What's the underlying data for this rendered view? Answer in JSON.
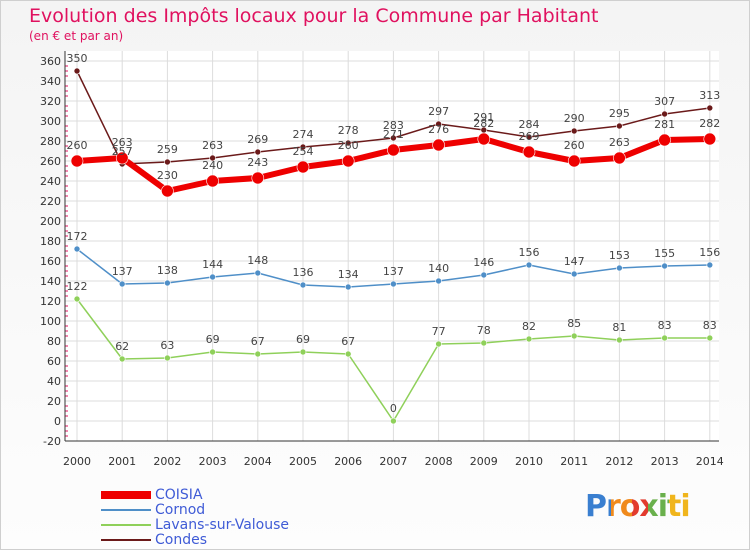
{
  "title": "Evolution des Impôts locaux pour la Commune par Habitant",
  "subtitle": "(en € et par an)",
  "logo": "Proxiti",
  "chart_data": {
    "type": "line",
    "title": "Evolution des Impôts locaux pour la Commune par Habitant",
    "subtitle": "(en € et par an)",
    "xlabel": "",
    "ylabel": "",
    "ylim": [
      -20,
      360
    ],
    "yticks": [
      -20,
      0,
      20,
      40,
      60,
      80,
      100,
      120,
      140,
      160,
      180,
      200,
      220,
      240,
      260,
      280,
      300,
      320,
      340,
      360
    ],
    "grid": true,
    "legend_position": "bottom-left",
    "categories": [
      "2000",
      "2001",
      "2002",
      "2003",
      "2004",
      "2005",
      "2006",
      "2007",
      "2008",
      "2009",
      "2010",
      "2011",
      "2012",
      "2013",
      "2014"
    ],
    "series": [
      {
        "name": "Condes",
        "color": "#6b1a1a",
        "values": [
          350,
          257,
          259,
          263,
          269,
          274,
          278,
          283,
          297,
          291,
          284,
          290,
          295,
          307,
          313
        ]
      },
      {
        "name": "Cornod",
        "color": "#4f8fc8",
        "values": [
          172,
          137,
          138,
          144,
          148,
          136,
          134,
          137,
          140,
          146,
          156,
          147,
          153,
          155,
          156
        ]
      },
      {
        "name": "Lavans-sur-Valouse",
        "color": "#8fd05a",
        "values": [
          122,
          62,
          63,
          69,
          67,
          69,
          67,
          0,
          77,
          78,
          82,
          85,
          81,
          83,
          83
        ]
      },
      {
        "name": "COISIA",
        "color": "#ee0000",
        "values": [
          260,
          263,
          230,
          240,
          243,
          254,
          260,
          271,
          276,
          282,
          269,
          260,
          263,
          281,
          282
        ]
      }
    ]
  },
  "legend": [
    {
      "name": "COISIA",
      "color": "#ee0000"
    },
    {
      "name": "Cornod",
      "color": "#4f8fc8"
    },
    {
      "name": "Lavans-sur-Valouse",
      "color": "#8fd05a"
    },
    {
      "name": "Condes",
      "color": "#6b1a1a"
    }
  ]
}
